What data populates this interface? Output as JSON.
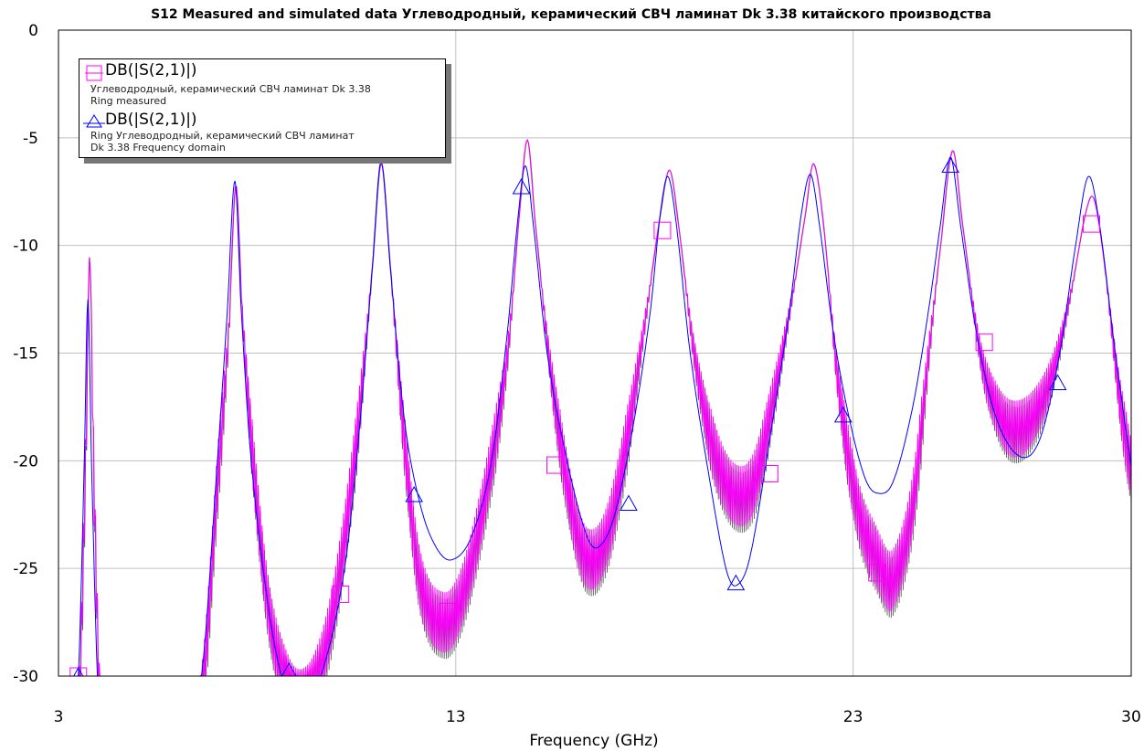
{
  "chart_data": {
    "type": "line",
    "title": "S12 Measured and simulated data Углеводродный, керамический СВЧ ламинат Dk 3.38 китайского производства",
    "xlabel": "Frequency (GHz)",
    "ylabel": "",
    "xlim": [
      3,
      30
    ],
    "ylim": [
      -30,
      0
    ],
    "x_ticks": [
      "3",
      "13",
      "23",
      "30"
    ],
    "x_tick_values": [
      3,
      13,
      23,
      30
    ],
    "y_ticks": [
      "0",
      "-5",
      "-10",
      "-15",
      "-20",
      "-25",
      "-30"
    ],
    "y_tick_values": [
      0,
      -5,
      -10,
      -15,
      -20,
      -25,
      -30
    ],
    "grid": true,
    "legend_position": "top-left",
    "series": [
      {
        "name": "DB(|S(2,1)|)",
        "description_line1": "Углеводродный, керамический СВЧ ламинат Dk 3.38",
        "description_line2": "Ring measured",
        "color": "#ff00ff",
        "marker": "square",
        "points": [
          [
            3.0,
            -45
          ],
          [
            3.5,
            -32
          ],
          [
            3.68,
            -20
          ],
          [
            3.78,
            -10.5
          ],
          [
            3.88,
            -20
          ],
          [
            4.05,
            -32
          ],
          [
            4.4,
            -42
          ],
          [
            5.5,
            -42
          ],
          [
            6.6,
            -31
          ],
          [
            7.0,
            -21
          ],
          [
            7.28,
            -14
          ],
          [
            7.46,
            -7.2
          ],
          [
            7.62,
            -13
          ],
          [
            7.9,
            -20
          ],
          [
            8.3,
            -27
          ],
          [
            8.8,
            -30.5
          ],
          [
            9.2,
            -31
          ],
          [
            9.6,
            -29.5
          ],
          [
            10.0,
            -26
          ],
          [
            10.5,
            -19
          ],
          [
            10.9,
            -11
          ],
          [
            11.12,
            -6.2
          ],
          [
            11.35,
            -11
          ],
          [
            11.7,
            -19
          ],
          [
            12.1,
            -25.5
          ],
          [
            12.7,
            -27.5
          ],
          [
            13.2,
            -26
          ],
          [
            13.8,
            -21
          ],
          [
            14.3,
            -15
          ],
          [
            14.6,
            -8.5
          ],
          [
            14.8,
            -5.1
          ],
          [
            15.0,
            -9
          ],
          [
            15.4,
            -16
          ],
          [
            15.9,
            -22
          ],
          [
            16.3,
            -24.5
          ],
          [
            16.8,
            -23.5
          ],
          [
            17.3,
            -19
          ],
          [
            17.8,
            -13
          ],
          [
            18.15,
            -8.5
          ],
          [
            18.38,
            -6.5
          ],
          [
            18.6,
            -9
          ],
          [
            19.0,
            -15
          ],
          [
            19.5,
            -19.5
          ],
          [
            20.0,
            -21.5
          ],
          [
            20.5,
            -21
          ],
          [
            21.0,
            -17
          ],
          [
            21.5,
            -12
          ],
          [
            21.8,
            -8.5
          ],
          [
            22.0,
            -6.2
          ],
          [
            22.25,
            -9
          ],
          [
            22.6,
            -16
          ],
          [
            23.1,
            -22
          ],
          [
            23.6,
            -24.5
          ],
          [
            24.0,
            -25.5
          ],
          [
            24.5,
            -22
          ],
          [
            24.9,
            -15
          ],
          [
            25.2,
            -10
          ],
          [
            25.5,
            -5.6
          ],
          [
            25.75,
            -9
          ],
          [
            26.2,
            -15
          ],
          [
            26.6,
            -17.5
          ],
          [
            27.0,
            -18.5
          ],
          [
            27.5,
            -18
          ],
          [
            28.0,
            -16
          ],
          [
            28.5,
            -12
          ],
          [
            28.85,
            -8.5
          ],
          [
            29.05,
            -7.8
          ],
          [
            29.3,
            -10.5
          ],
          [
            29.7,
            -17
          ],
          [
            30.0,
            -20.5
          ]
        ],
        "markers": [
          [
            3.5,
            -30
          ],
          [
            10.1,
            -26.2
          ],
          [
            12.8,
            -27
          ],
          [
            15.5,
            -20.2
          ],
          [
            18.2,
            -9.3
          ],
          [
            20.9,
            -20.6
          ],
          [
            23.6,
            -25.2
          ],
          [
            26.3,
            -14.5
          ],
          [
            29.0,
            -9
          ]
        ]
      },
      {
        "name": "DB(|S(2,1)|)",
        "description_line1": "Ring Углеводродный, керамический СВЧ ламинат",
        "description_line2": "Dk 3.38 Frequency domain",
        "color": "#0000ff",
        "marker": "triangle",
        "points": [
          [
            3.0,
            -45
          ],
          [
            3.5,
            -30
          ],
          [
            3.65,
            -20
          ],
          [
            3.74,
            -12.5
          ],
          [
            3.83,
            -20
          ],
          [
            3.98,
            -30
          ],
          [
            4.3,
            -42
          ],
          [
            5.5,
            -42
          ],
          [
            6.6,
            -30
          ],
          [
            7.0,
            -20
          ],
          [
            7.25,
            -13
          ],
          [
            7.44,
            -7
          ],
          [
            7.6,
            -13
          ],
          [
            7.85,
            -20
          ],
          [
            8.3,
            -27
          ],
          [
            8.7,
            -30.5
          ],
          [
            9.1,
            -31
          ],
          [
            9.6,
            -30
          ],
          [
            10.2,
            -25
          ],
          [
            10.6,
            -18
          ],
          [
            10.9,
            -11
          ],
          [
            11.12,
            -6.1
          ],
          [
            11.35,
            -11
          ],
          [
            11.7,
            -18
          ],
          [
            12.1,
            -22
          ],
          [
            12.5,
            -24
          ],
          [
            12.9,
            -24.6
          ],
          [
            13.4,
            -23.5
          ],
          [
            13.9,
            -20
          ],
          [
            14.3,
            -14
          ],
          [
            14.55,
            -9
          ],
          [
            14.75,
            -6.3
          ],
          [
            14.95,
            -9
          ],
          [
            15.3,
            -15
          ],
          [
            15.8,
            -20
          ],
          [
            16.3,
            -23.5
          ],
          [
            16.6,
            -24
          ],
          [
            17.0,
            -22.5
          ],
          [
            17.5,
            -18
          ],
          [
            17.9,
            -13
          ],
          [
            18.15,
            -8.5
          ],
          [
            18.34,
            -6.8
          ],
          [
            18.55,
            -9
          ],
          [
            18.9,
            -15
          ],
          [
            19.4,
            -21
          ],
          [
            19.8,
            -25
          ],
          [
            20.05,
            -25.8
          ],
          [
            20.4,
            -24.5
          ],
          [
            20.9,
            -19
          ],
          [
            21.4,
            -13
          ],
          [
            21.7,
            -8.5
          ],
          [
            21.93,
            -6.7
          ],
          [
            22.15,
            -9
          ],
          [
            22.5,
            -14
          ],
          [
            22.9,
            -18
          ],
          [
            23.3,
            -20.8
          ],
          [
            23.6,
            -21.5
          ],
          [
            24.0,
            -21
          ],
          [
            24.5,
            -17.5
          ],
          [
            24.9,
            -13
          ],
          [
            25.2,
            -9
          ],
          [
            25.45,
            -5.9
          ],
          [
            25.7,
            -9
          ],
          [
            26.1,
            -14
          ],
          [
            26.6,
            -18
          ],
          [
            27.2,
            -19.8
          ],
          [
            27.7,
            -19
          ],
          [
            28.2,
            -15
          ],
          [
            28.6,
            -10
          ],
          [
            28.92,
            -6.8
          ],
          [
            29.2,
            -9
          ],
          [
            29.6,
            -15
          ],
          [
            30.0,
            -20.3
          ]
        ],
        "markers": [
          [
            3.5,
            -30
          ],
          [
            8.8,
            -29.8
          ],
          [
            11.95,
            -21.6
          ],
          [
            14.65,
            -7.3
          ],
          [
            17.35,
            -22
          ],
          [
            20.05,
            -25.7
          ],
          [
            22.75,
            -17.9
          ],
          [
            25.45,
            -6.3
          ],
          [
            28.15,
            -16.4
          ]
        ]
      }
    ]
  }
}
